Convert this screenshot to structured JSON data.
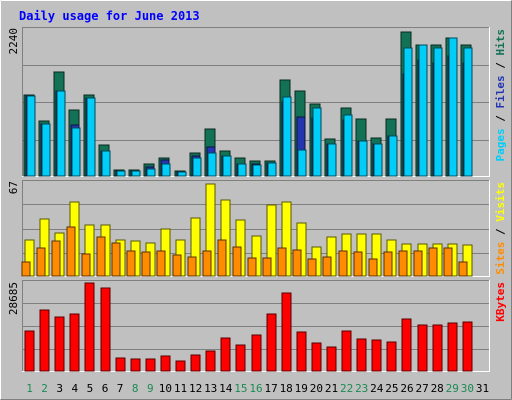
{
  "title": "Daily usage for June 2013",
  "colors": {
    "background": "#c0c0c0",
    "border_light": "#ffffff",
    "border_dark": "#808080",
    "title": "#0000ff",
    "hits": "#137255",
    "files": "#2336b0",
    "pages": "#00cdf8",
    "visits": "#ffff00",
    "sites": "#ff8c00",
    "kbytes": "#ff0000",
    "weekday_label": "#000000",
    "weekend_label": "#1c8b55"
  },
  "chart_data": [
    {
      "type": "bar",
      "name": "hits-files-pages",
      "max_label": "2240",
      "ylim": [
        0,
        2240
      ],
      "legend": [
        {
          "label": "Pages",
          "color": "#00cdf8"
        },
        {
          "label": "Files",
          "color": "#2336b0"
        },
        {
          "label": "Hits",
          "color": "#137255"
        }
      ],
      "series": [
        {
          "name": "Hits",
          "values": [
            1250,
            840,
            1590,
            1020,
            1250,
            480,
            90,
            90,
            180,
            280,
            70,
            350,
            720,
            390,
            280,
            230,
            230,
            1470,
            1310,
            1110,
            570,
            1040,
            880,
            580,
            880,
            2210,
            2010,
            2010,
            2110,
            2010
          ]
        },
        {
          "name": "Files",
          "values": [
            1220,
            800,
            1310,
            780,
            1200,
            380,
            70,
            80,
            140,
            240,
            60,
            300,
            440,
            300,
            190,
            190,
            200,
            1140,
            910,
            890,
            490,
            860,
            540,
            490,
            620,
            1560,
            1780,
            1730,
            1840,
            1730
          ]
        },
        {
          "name": "Pages",
          "values": [
            1220,
            800,
            1310,
            730,
            1200,
            380,
            70,
            80,
            110,
            180,
            60,
            280,
            360,
            300,
            190,
            170,
            200,
            1210,
            400,
            1040,
            490,
            940,
            540,
            490,
            620,
            1960,
            2010,
            1960,
            2110,
            1970
          ]
        }
      ]
    },
    {
      "type": "bar",
      "name": "visits-sites",
      "max_label": "67",
      "ylim": [
        0,
        67
      ],
      "legend": [
        {
          "label": "Sites",
          "color": "#ff8c00"
        },
        {
          "label": "Visits",
          "color": "#ffff00"
        }
      ],
      "series": [
        {
          "name": "Visits",
          "values": [
            26,
            41,
            31,
            53,
            37,
            37,
            26,
            25,
            24,
            34,
            26,
            42,
            66,
            55,
            40,
            29,
            51,
            53,
            38,
            21,
            28,
            30,
            30,
            30,
            26,
            23,
            23,
            23,
            23,
            22
          ]
        },
        {
          "name": "Sites",
          "values": [
            10,
            20,
            25,
            35,
            16,
            28,
            24,
            18,
            17,
            18,
            15,
            14,
            18,
            26,
            21,
            13,
            13,
            20,
            19,
            12,
            14,
            18,
            17,
            12,
            17,
            18,
            18,
            20,
            20,
            10
          ]
        }
      ]
    },
    {
      "type": "bar",
      "name": "kbytes",
      "max_label": "28685",
      "ylim": [
        0,
        28685
      ],
      "legend": [
        {
          "label": "KBytes",
          "color": "#ff0000"
        }
      ],
      "series": [
        {
          "name": "KBytes",
          "values": [
            13200,
            19800,
            17500,
            18500,
            28685,
            27200,
            4100,
            3900,
            3900,
            4800,
            3300,
            5300,
            6500,
            10600,
            8500,
            11600,
            18500,
            25300,
            12800,
            9000,
            7900,
            13000,
            10400,
            10100,
            9500,
            17000,
            14900,
            14900,
            15800,
            16100
          ]
        }
      ]
    }
  ],
  "x_labels": [
    {
      "label": "1",
      "weekend": true
    },
    {
      "label": "2",
      "weekend": true
    },
    {
      "label": "3",
      "weekend": false
    },
    {
      "label": "4",
      "weekend": false
    },
    {
      "label": "5",
      "weekend": false
    },
    {
      "label": "6",
      "weekend": false
    },
    {
      "label": "7",
      "weekend": false
    },
    {
      "label": "8",
      "weekend": true
    },
    {
      "label": "9",
      "weekend": true
    },
    {
      "label": "10",
      "weekend": false
    },
    {
      "label": "11",
      "weekend": false
    },
    {
      "label": "12",
      "weekend": false
    },
    {
      "label": "13",
      "weekend": false
    },
    {
      "label": "14",
      "weekend": false
    },
    {
      "label": "15",
      "weekend": true
    },
    {
      "label": "16",
      "weekend": true
    },
    {
      "label": "17",
      "weekend": false
    },
    {
      "label": "18",
      "weekend": false
    },
    {
      "label": "19",
      "weekend": false
    },
    {
      "label": "20",
      "weekend": false
    },
    {
      "label": "21",
      "weekend": false
    },
    {
      "label": "22",
      "weekend": true
    },
    {
      "label": "23",
      "weekend": true
    },
    {
      "label": "24",
      "weekend": false
    },
    {
      "label": "25",
      "weekend": false
    },
    {
      "label": "26",
      "weekend": false
    },
    {
      "label": "27",
      "weekend": false
    },
    {
      "label": "28",
      "weekend": false
    },
    {
      "label": "29",
      "weekend": true
    },
    {
      "label": "30",
      "weekend": true
    },
    {
      "label": "31",
      "weekend": false
    }
  ]
}
